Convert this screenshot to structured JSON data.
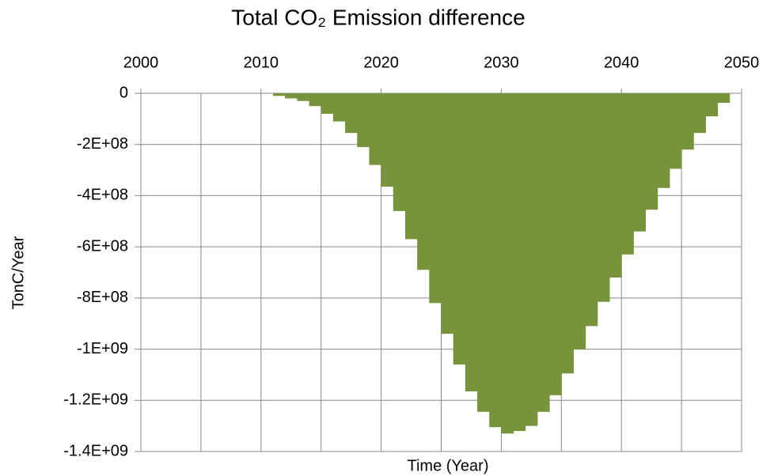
{
  "chart_data": {
    "type": "histogram",
    "title": "Total CO₂ Emission difference",
    "xlabel": "Time (Year)",
    "ylabel": "TonC/Year",
    "bins": [
      2011,
      2012,
      2013,
      2014,
      2015,
      2016,
      2017,
      2018,
      2019,
      2020,
      2021,
      2022,
      2023,
      2024,
      2025,
      2026,
      2027,
      2028,
      2029,
      2030,
      2031,
      2032,
      2033,
      2034,
      2035,
      2036,
      2037,
      2038,
      2039,
      2040,
      2041,
      2042,
      2043,
      2044,
      2045,
      2046,
      2047,
      2048,
      2049
    ],
    "values": [
      -10000000,
      -20000000,
      -30000000,
      -50000000,
      -80000000,
      -110000000,
      -155000000,
      -210000000,
      -280000000,
      -365000000,
      -460000000,
      -570000000,
      -690000000,
      -820000000,
      -940000000,
      -1060000000,
      -1165000000,
      -1245000000,
      -1305000000,
      -1330000000,
      -1320000000,
      -1300000000,
      -1245000000,
      -1180000000,
      -1095000000,
      -1000000000,
      -910000000,
      -815000000,
      -720000000,
      -630000000,
      -540000000,
      -455000000,
      -370000000,
      -295000000,
      -220000000,
      -155000000,
      -90000000,
      -37000000
    ],
    "color": "#77933c",
    "xlim": [
      2000,
      2050
    ],
    "xticks": [
      2000,
      2010,
      2020,
      2030,
      2040,
      2050
    ],
    "x_minor_grid": [
      2005,
      2015,
      2025,
      2035,
      2045
    ],
    "ylim": [
      -1400000000,
      0
    ],
    "yticks": [
      0,
      {
        "value": -200000000,
        "label": "-2E+08"
      },
      {
        "value": -400000000,
        "label": "-4E+08"
      },
      {
        "value": -600000000,
        "label": "-6E+08"
      },
      {
        "value": -800000000,
        "label": "-8E+08"
      },
      {
        "value": -1000000000,
        "label": "-1E+09"
      },
      {
        "value": -1200000000,
        "label": "-1.2E+09"
      },
      {
        "value": -1400000000,
        "label": "-1.4E+09"
      }
    ],
    "grid": true
  }
}
